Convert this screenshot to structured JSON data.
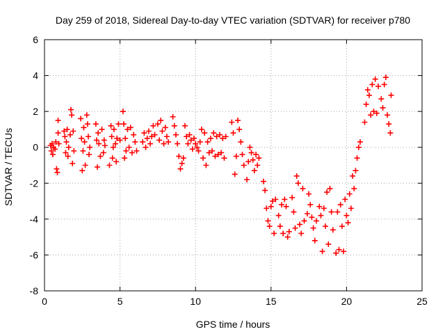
{
  "chart_data": {
    "type": "scatter",
    "title": "Day 259 of 2018, Sidereal Day-to-day VTEC variation (SDTVAR) for receiver p780",
    "xlabel": "GPS time / hours",
    "ylabel": "SDTVAR / TECUs",
    "xlim": [
      0,
      25
    ],
    "ylim": [
      -8,
      6
    ],
    "xticks": [
      0,
      5,
      10,
      15,
      20,
      25
    ],
    "yticks": [
      -8,
      -6,
      -4,
      -2,
      0,
      2,
      4,
      6
    ],
    "grid": true,
    "marker": "plus",
    "series": [
      {
        "name": "SDTVAR",
        "color": "#ff0000",
        "points": [
          [
            0.4,
            0.1
          ],
          [
            0.45,
            -0.2
          ],
          [
            0.5,
            0.2
          ],
          [
            0.55,
            -0.4
          ],
          [
            0.6,
            0.0
          ],
          [
            0.7,
            -0.1
          ],
          [
            0.75,
            0.3
          ],
          [
            0.8,
            -1.2
          ],
          [
            0.85,
            -1.4
          ],
          [
            0.9,
            1.5
          ],
          [
            0.9,
            0.8
          ],
          [
            0.95,
            0.2
          ],
          [
            1.3,
            0.9
          ],
          [
            1.35,
            0.6
          ],
          [
            1.4,
            -0.3
          ],
          [
            1.45,
            0.3
          ],
          [
            1.5,
            1.0
          ],
          [
            1.55,
            -0.5
          ],
          [
            1.6,
            0.0
          ],
          [
            1.7,
            0.7
          ],
          [
            1.75,
            2.1
          ],
          [
            1.8,
            1.8
          ],
          [
            1.85,
            -0.9
          ],
          [
            1.9,
            0.9
          ],
          [
            1.95,
            -0.2
          ],
          [
            2.4,
            1.6
          ],
          [
            2.45,
            0.5
          ],
          [
            2.5,
            -1.3
          ],
          [
            2.55,
            -0.2
          ],
          [
            2.6,
            1.1
          ],
          [
            2.65,
            0.3
          ],
          [
            2.7,
            -1.0
          ],
          [
            2.8,
            1.8
          ],
          [
            2.85,
            1.3
          ],
          [
            2.9,
            0.6
          ],
          [
            2.95,
            -0.4
          ],
          [
            3.0,
            0.0
          ],
          [
            3.4,
            1.3
          ],
          [
            3.45,
            0.4
          ],
          [
            3.5,
            -1.1
          ],
          [
            3.55,
            0.8
          ],
          [
            3.6,
            0.2
          ],
          [
            3.7,
            -0.5
          ],
          [
            3.8,
            1.0
          ],
          [
            3.9,
            -0.3
          ],
          [
            3.95,
            0.4
          ],
          [
            4.0,
            0.1
          ],
          [
            4.3,
            -1.0
          ],
          [
            4.4,
            1.2
          ],
          [
            4.45,
            0.6
          ],
          [
            4.5,
            -0.6
          ],
          [
            4.55,
            0.0
          ],
          [
            4.6,
            1.0
          ],
          [
            4.7,
            0.2
          ],
          [
            4.75,
            -0.8
          ],
          [
            4.8,
            0.5
          ],
          [
            4.9,
            1.3
          ],
          [
            5.0,
            0.4
          ],
          [
            5.2,
            2.0
          ],
          [
            5.25,
            1.3
          ],
          [
            5.3,
            -0.6
          ],
          [
            5.35,
            0.5
          ],
          [
            5.4,
            -0.2
          ],
          [
            5.5,
            1.0
          ],
          [
            5.6,
            0.0
          ],
          [
            5.7,
            1.1
          ],
          [
            5.8,
            -0.3
          ],
          [
            5.9,
            0.7
          ],
          [
            6.0,
            0.3
          ],
          [
            6.1,
            -0.2
          ],
          [
            6.5,
            0.3
          ],
          [
            6.6,
            0.8
          ],
          [
            6.7,
            0.0
          ],
          [
            6.8,
            0.5
          ],
          [
            6.9,
            0.9
          ],
          [
            7.0,
            0.2
          ],
          [
            7.1,
            0.6
          ],
          [
            7.2,
            1.2
          ],
          [
            7.3,
            0.7
          ],
          [
            7.5,
            1.3
          ],
          [
            7.6,
            0.4
          ],
          [
            7.7,
            1.5
          ],
          [
            7.8,
            0.9
          ],
          [
            7.9,
            0.2
          ],
          [
            8.0,
            1.1
          ],
          [
            8.1,
            0.6
          ],
          [
            8.2,
            0.3
          ],
          [
            8.5,
            1.7
          ],
          [
            8.6,
            1.2
          ],
          [
            8.7,
            0.7
          ],
          [
            8.8,
            0.2
          ],
          [
            8.9,
            -0.5
          ],
          [
            9.0,
            -1.2
          ],
          [
            9.1,
            -0.9
          ],
          [
            9.2,
            -0.6
          ],
          [
            9.3,
            1.2
          ],
          [
            9.4,
            0.6
          ],
          [
            9.5,
            0.2
          ],
          [
            9.6,
            0.7
          ],
          [
            9.7,
            0.4
          ],
          [
            9.8,
            -0.1
          ],
          [
            9.9,
            0.5
          ],
          [
            10.0,
            0.2
          ],
          [
            10.1,
            0.0
          ],
          [
            10.2,
            -0.2
          ],
          [
            10.3,
            0.3
          ],
          [
            10.4,
            1.0
          ],
          [
            10.5,
            -0.6
          ],
          [
            10.6,
            0.8
          ],
          [
            10.7,
            -1.0
          ],
          [
            10.8,
            0.3
          ],
          [
            10.9,
            -0.3
          ],
          [
            11.0,
            0.5
          ],
          [
            11.1,
            -0.2
          ],
          [
            11.2,
            0.8
          ],
          [
            11.3,
            -0.5
          ],
          [
            11.4,
            0.6
          ],
          [
            11.5,
            -0.4
          ],
          [
            11.6,
            0.7
          ],
          [
            11.7,
            -0.3
          ],
          [
            11.8,
            0.5
          ],
          [
            11.9,
            -0.6
          ],
          [
            12.0,
            0.6
          ],
          [
            12.4,
            1.4
          ],
          [
            12.5,
            0.8
          ],
          [
            12.6,
            -1.5
          ],
          [
            12.7,
            -0.5
          ],
          [
            12.8,
            1.5
          ],
          [
            12.9,
            1.0
          ],
          [
            13.0,
            0.3
          ],
          [
            13.1,
            -0.4
          ],
          [
            13.2,
            -1.0
          ],
          [
            13.4,
            -1.8
          ],
          [
            13.5,
            -0.8
          ],
          [
            13.6,
            0.0
          ],
          [
            13.7,
            -0.3
          ],
          [
            13.8,
            -0.7
          ],
          [
            13.9,
            -1.3
          ],
          [
            14.0,
            -0.4
          ],
          [
            14.1,
            -1.0
          ],
          [
            14.2,
            -0.6
          ],
          [
            14.5,
            -1.9
          ],
          [
            14.6,
            -2.4
          ],
          [
            14.7,
            -3.4
          ],
          [
            14.8,
            -4.1
          ],
          [
            14.9,
            -4.4
          ],
          [
            15.0,
            -3.3
          ],
          [
            15.1,
            -3.0
          ],
          [
            15.2,
            -4.8
          ],
          [
            15.3,
            -2.9
          ],
          [
            15.5,
            -3.8
          ],
          [
            15.6,
            -4.4
          ],
          [
            15.7,
            -3.2
          ],
          [
            15.8,
            -4.8
          ],
          [
            15.9,
            -2.9
          ],
          [
            16.0,
            -3.3
          ],
          [
            16.1,
            -5.0
          ],
          [
            16.2,
            -4.7
          ],
          [
            16.4,
            -2.8
          ],
          [
            16.5,
            -3.6
          ],
          [
            16.6,
            -4.5
          ],
          [
            16.7,
            -1.6
          ],
          [
            16.8,
            -2.0
          ],
          [
            16.9,
            -4.3
          ],
          [
            17.0,
            -4.8
          ],
          [
            17.1,
            -2.3
          ],
          [
            17.2,
            -4.1
          ],
          [
            17.4,
            -3.7
          ],
          [
            17.5,
            -2.6
          ],
          [
            17.6,
            -3.2
          ],
          [
            17.7,
            -3.9
          ],
          [
            17.8,
            -4.5
          ],
          [
            17.9,
            -5.2
          ],
          [
            18.0,
            -4.1
          ],
          [
            18.2,
            -3.3
          ],
          [
            18.3,
            -3.8
          ],
          [
            18.4,
            -5.8
          ],
          [
            18.5,
            -3.4
          ],
          [
            18.6,
            -4.4
          ],
          [
            18.7,
            -2.5
          ],
          [
            18.8,
            -5.4
          ],
          [
            18.9,
            -2.3
          ],
          [
            19.0,
            -3.6
          ],
          [
            19.1,
            -4.6
          ],
          [
            19.3,
            -5.9
          ],
          [
            19.4,
            -3.6
          ],
          [
            19.5,
            -5.7
          ],
          [
            19.6,
            -3.2
          ],
          [
            19.7,
            -4.4
          ],
          [
            19.8,
            -5.8
          ],
          [
            19.9,
            -2.9
          ],
          [
            20.0,
            -3.8
          ],
          [
            20.1,
            -4.2
          ],
          [
            20.2,
            -2.6
          ],
          [
            20.3,
            -3.4
          ],
          [
            20.4,
            -1.6
          ],
          [
            20.5,
            -2.3
          ],
          [
            20.6,
            -1.3
          ],
          [
            20.7,
            -0.6
          ],
          [
            20.8,
            0.0
          ],
          [
            20.9,
            0.3
          ],
          [
            21.2,
            1.4
          ],
          [
            21.3,
            2.4
          ],
          [
            21.4,
            3.2
          ],
          [
            21.5,
            2.9
          ],
          [
            21.6,
            1.8
          ],
          [
            21.7,
            3.5
          ],
          [
            21.8,
            2.0
          ],
          [
            21.9,
            3.8
          ],
          [
            22.0,
            1.9
          ],
          [
            22.1,
            3.4
          ],
          [
            22.3,
            2.7
          ],
          [
            22.4,
            2.2
          ],
          [
            22.5,
            3.5
          ],
          [
            22.6,
            3.9
          ],
          [
            22.7,
            1.8
          ],
          [
            22.8,
            1.3
          ],
          [
            22.9,
            0.8
          ],
          [
            22.95,
            2.9
          ]
        ]
      }
    ]
  }
}
